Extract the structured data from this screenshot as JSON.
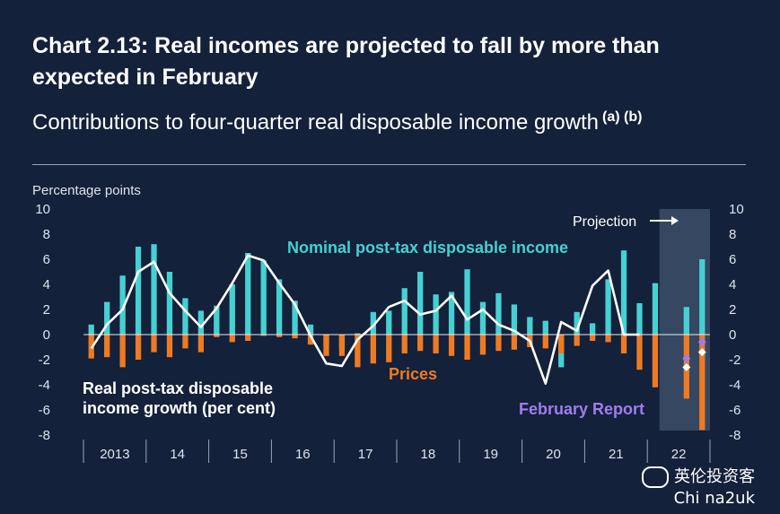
{
  "title": "Chart 2.13: Real incomes are projected to fall by more than expected in February",
  "subtitle": "Contributions to four-quarter real disposable income growth",
  "subtitle_notes": "(a) (b)",
  "watermark": {
    "line1": "英伦投资客",
    "line2": "Chi na2uk"
  },
  "colors": {
    "background": "#13213a",
    "nominal": "#45d1d3",
    "prices": "#ef7a22",
    "line": "#ffffff",
    "february": "#a07cf0",
    "projection_band": "#3a4b66"
  },
  "chart_data": {
    "type": "bar",
    "ylabel": "Percentage points",
    "ylim": [
      -8,
      10
    ],
    "yticks": [
      -8,
      -6,
      -4,
      -2,
      0,
      2,
      4,
      6,
      8,
      10
    ],
    "ytick_labels": [
      "-8",
      "-6",
      "-4",
      "-2",
      "0",
      "2",
      "4",
      "6",
      "8",
      "10"
    ],
    "xticks": [
      "2013",
      "14",
      "15",
      "16",
      "17",
      "18",
      "19",
      "20",
      "21",
      "22"
    ],
    "quarters": [
      "2013 Q1",
      "2013 Q2",
      "2013 Q3",
      "2013 Q4",
      "2014 Q1",
      "2014 Q2",
      "2014 Q3",
      "2014 Q4",
      "2015 Q1",
      "2015 Q2",
      "2015 Q3",
      "2015 Q4",
      "2016 Q1",
      "2016 Q2",
      "2016 Q3",
      "2016 Q4",
      "2017 Q1",
      "2017 Q2",
      "2017 Q3",
      "2017 Q4",
      "2018 Q1",
      "2018 Q2",
      "2018 Q3",
      "2018 Q4",
      "2019 Q1",
      "2019 Q2",
      "2019 Q3",
      "2019 Q4",
      "2020 Q1",
      "2020 Q2",
      "2020 Q3",
      "2020 Q4",
      "2021 Q1",
      "2021 Q2",
      "2021 Q3",
      "2021 Q4",
      "2022 Q1",
      "2022 Q2",
      "2022 Q3",
      "2022 Q4"
    ],
    "projection_start_index": 37,
    "projection_label": "Projection",
    "series": [
      {
        "name": "Nominal post-tax disposable income",
        "kind": "bar",
        "values": [
          0.8,
          2.6,
          4.7,
          7.0,
          7.2,
          5.0,
          2.9,
          1.9,
          2.3,
          4.0,
          6.5,
          5.9,
          4.4,
          2.7,
          0.8,
          -0.9,
          -1.0,
          0.1,
          1.8,
          1.9,
          3.7,
          5.0,
          3.2,
          3.4,
          5.2,
          2.6,
          3.3,
          2.4,
          1.4,
          1.1,
          -2.6,
          1.8,
          0.9,
          4.4,
          6.7,
          2.5,
          4.1,
          null,
          2.2,
          6.0
        ]
      },
      {
        "name": "Prices",
        "kind": "bar",
        "values": [
          -1.9,
          -1.8,
          -2.6,
          -2.0,
          -1.4,
          -1.8,
          -1.1,
          -1.4,
          -0.2,
          -0.6,
          -0.5,
          -0.1,
          -0.2,
          -0.3,
          -0.8,
          -1.7,
          -1.7,
          -2.6,
          -2.3,
          -2.2,
          -1.5,
          -1.3,
          -1.5,
          -1.7,
          -2.0,
          -1.6,
          -1.3,
          -1.2,
          -1.0,
          -1.1,
          -1.5,
          -0.9,
          -0.5,
          -0.6,
          -1.5,
          -2.8,
          -4.2,
          null,
          -5.1,
          -7.6
        ]
      },
      {
        "name": "Real post-tax disposable income growth (per cent)",
        "kind": "line",
        "values": [
          -1.1,
          0.8,
          2.0,
          5.0,
          5.8,
          3.3,
          1.9,
          0.6,
          2.1,
          4.1,
          6.3,
          5.9,
          4.1,
          2.4,
          -0.1,
          -2.3,
          -2.5,
          -0.4,
          0.7,
          2.2,
          2.7,
          1.6,
          1.9,
          3.1,
          1.2,
          2.0,
          0.8,
          0.3,
          -0.5,
          -3.9,
          1.0,
          0.3,
          3.9,
          5.1,
          0.0,
          0.0,
          null,
          null,
          null,
          null
        ]
      },
      {
        "name": "February Report",
        "kind": "marker",
        "points": [
          {
            "quarter": "2022 Q3",
            "value": -1.9
          },
          {
            "quarter": "2022 Q4",
            "value": -0.6
          }
        ]
      },
      {
        "name": "Projection points",
        "kind": "marker",
        "points": [
          {
            "quarter": "2022 Q3",
            "value": -2.6
          },
          {
            "quarter": "2022 Q4",
            "value": -1.4
          }
        ]
      }
    ],
    "annotations": {
      "nominal": "Nominal post-tax disposable income",
      "prices": "Prices",
      "real_line1": "Real post-tax disposable",
      "real_line2": "income growth (per cent)",
      "february": "February Report"
    },
    "grid": false
  }
}
